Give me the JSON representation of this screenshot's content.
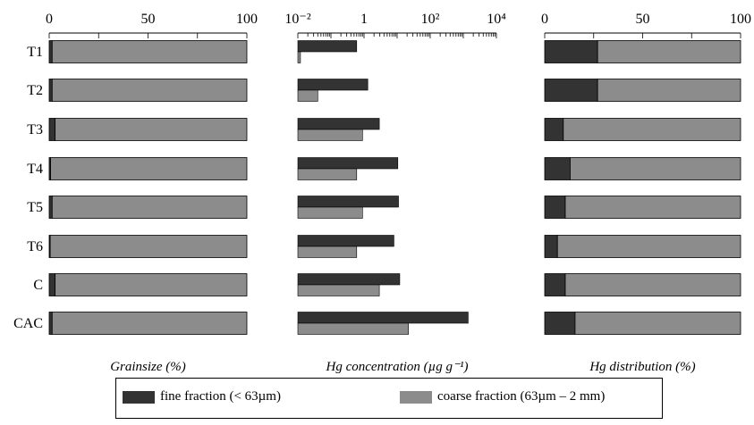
{
  "chart_data": [
    {
      "type": "bar",
      "stacked": true,
      "orientation": "horizontal",
      "xlabel": "Grainsize (%)",
      "xlim": [
        0,
        100
      ],
      "xticks": [
        "0",
        "50",
        "100"
      ],
      "categories": [
        "T1",
        "T2",
        "T3",
        "T4",
        "T5",
        "T6",
        "C",
        "CAC"
      ],
      "series": [
        {
          "name": "fine fraction (< 63µm)",
          "values": [
            1.5,
            1.5,
            3,
            0.7,
            1.5,
            0.5,
            3,
            1.5
          ]
        },
        {
          "name": "coarse fraction (63µm – 2 mm)",
          "values": [
            98.5,
            98.5,
            97,
            99.3,
            98.5,
            99.5,
            97,
            98.5
          ]
        }
      ]
    },
    {
      "type": "bar",
      "orientation": "horizontal",
      "xlabel": "Hg concentration (µg g⁻¹)",
      "xscale": "log",
      "xlim": [
        0.01,
        10000
      ],
      "xticks": [
        "10⁻²",
        "1",
        "10²",
        "10⁴"
      ],
      "categories": [
        "T1",
        "T2",
        "T3",
        "T4",
        "T5",
        "T6",
        "C",
        "CAC"
      ],
      "series": [
        {
          "name": "fine fraction (< 63µm)",
          "values": [
            0.6,
            1.3,
            2.9,
            10.5,
            11,
            8,
            12,
            1400
          ]
        },
        {
          "name": "coarse fraction (63µm – 2 mm)",
          "values": [
            0.012,
            0.04,
            0.9,
            0.6,
            0.9,
            0.6,
            2.9,
            22
          ]
        }
      ]
    },
    {
      "type": "bar",
      "stacked": true,
      "orientation": "horizontal",
      "xlabel": "Hg distribution (%)",
      "xlim": [
        0,
        100
      ],
      "xticks": [
        "0",
        "50",
        "100"
      ],
      "categories": [
        "T1",
        "T2",
        "T3",
        "T4",
        "T5",
        "T6",
        "C",
        "CAC"
      ],
      "series": [
        {
          "name": "fine fraction (< 63µm)",
          "values": [
            27,
            27,
            9.5,
            13,
            10.5,
            6.5,
            10.5,
            15.5
          ]
        },
        {
          "name": "coarse fraction (63µm – 2 mm)",
          "values": [
            73,
            73,
            90.5,
            87,
            89.5,
            93.5,
            89.5,
            84.5
          ]
        }
      ]
    }
  ],
  "colors": {
    "fine": "#333333",
    "coarse": "#8c8c8c"
  },
  "legend": {
    "fine_label": "fine fraction (< 63µm)",
    "coarse_label": "coarse fraction (63µm – 2 mm)"
  }
}
